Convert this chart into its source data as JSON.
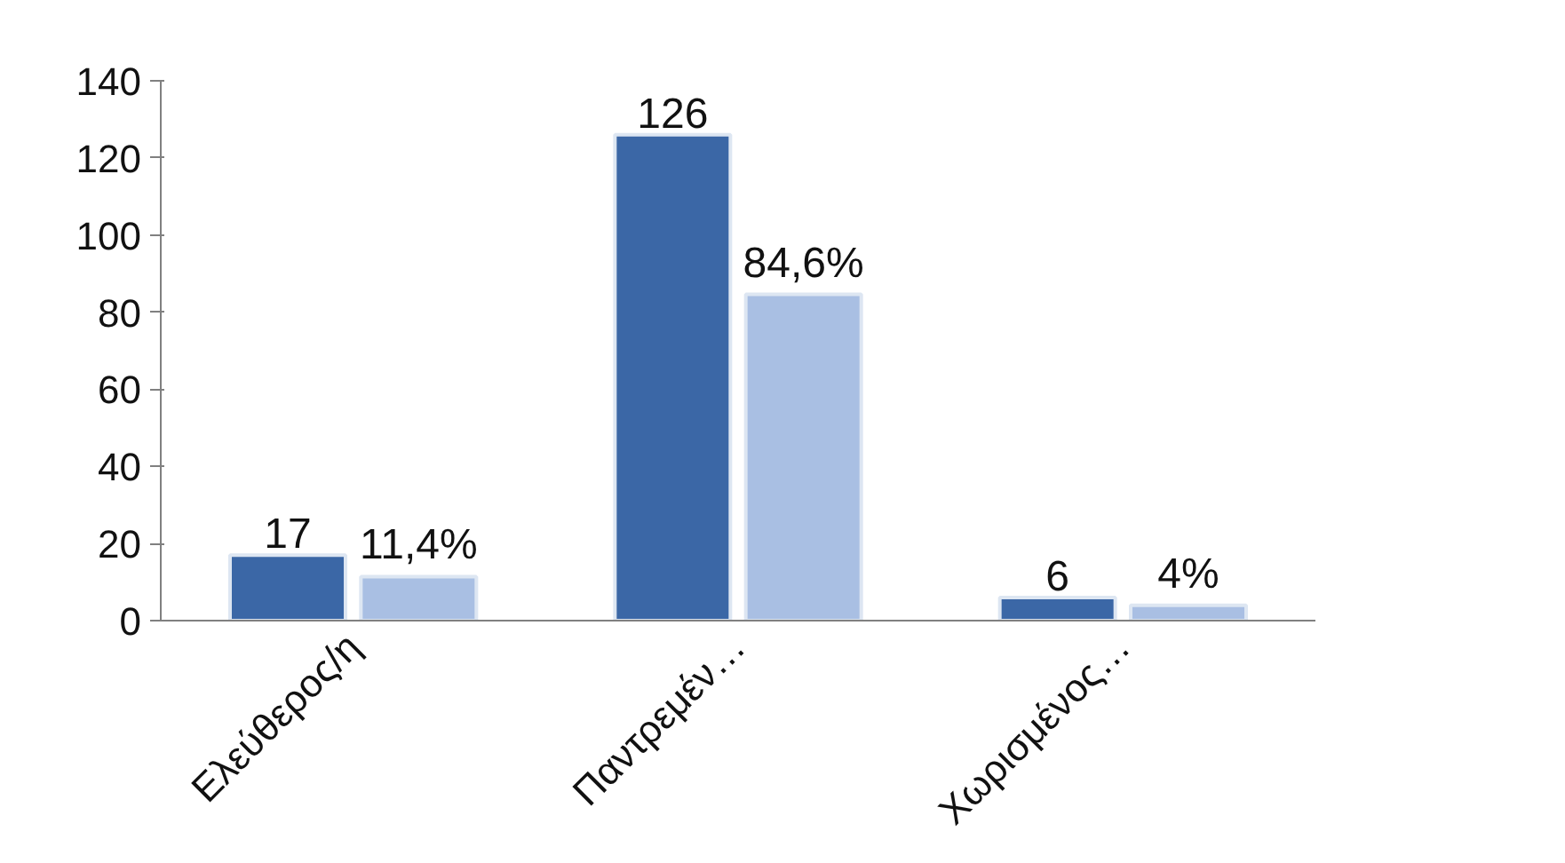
{
  "chart_data": {
    "type": "bar",
    "categories": [
      "Ελεύθερος/η",
      "Παντρεμέν…",
      "Χωρισμένος…"
    ],
    "series": [
      {
        "color": "#3b67a6",
        "values": [
          17,
          126,
          6
        ],
        "value_labels": [
          "17",
          "126",
          "6"
        ]
      },
      {
        "color": "#a9bfe3",
        "values": [
          11.4,
          84.6,
          4
        ],
        "value_labels": [
          "11,4%",
          "84,6%",
          "4%"
        ]
      }
    ],
    "ylim": [
      0,
      140
    ],
    "yticks": [
      0,
      20,
      40,
      60,
      80,
      100,
      120,
      140
    ],
    "grid": false
  }
}
